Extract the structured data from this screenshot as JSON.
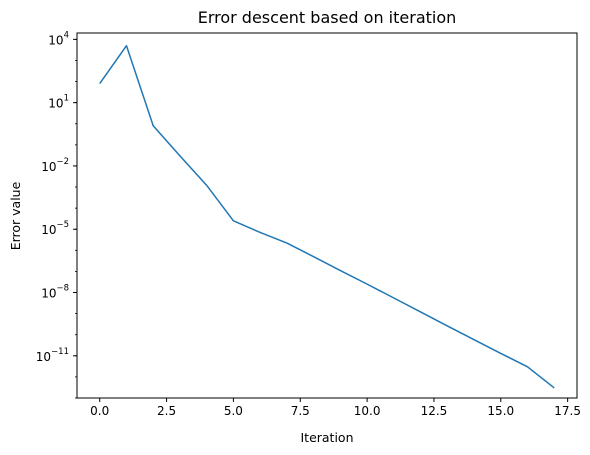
{
  "chart_data": {
    "type": "line",
    "title": "Error descent based on iteration",
    "xlabel": "Iteration",
    "ylabel": "Error value",
    "x_scale": "linear",
    "y_scale": "log",
    "xlim": [
      -0.85,
      17.85
    ],
    "ylim": [
      1e-13,
      20000.0
    ],
    "grid": false,
    "x_ticks": [
      {
        "value": 0.0,
        "label": "0.0"
      },
      {
        "value": 2.5,
        "label": "2.5"
      },
      {
        "value": 5.0,
        "label": "5.0"
      },
      {
        "value": 7.5,
        "label": "7.5"
      },
      {
        "value": 10.0,
        "label": "10.0"
      },
      {
        "value": 12.5,
        "label": "12.5"
      },
      {
        "value": 15.0,
        "label": "15.0"
      },
      {
        "value": 17.5,
        "label": "17.5"
      }
    ],
    "y_ticks": [
      {
        "value": 10000.0,
        "base": "10",
        "exp": "4"
      },
      {
        "value": 10.0,
        "base": "10",
        "exp": "1"
      },
      {
        "value": 0.01,
        "base": "10",
        "exp": "−2"
      },
      {
        "value": 1e-05,
        "base": "10",
        "exp": "−5"
      },
      {
        "value": 1e-08,
        "base": "10",
        "exp": "−8"
      },
      {
        "value": 1e-11,
        "base": "10",
        "exp": "−11"
      }
    ],
    "series": [
      {
        "color": "#1f77b4",
        "x": [
          0,
          1,
          2,
          3,
          4,
          5,
          6,
          7,
          8,
          9,
          10,
          11,
          12,
          13,
          14,
          15,
          16,
          17
        ],
        "y": [
          80,
          5000,
          0.8,
          0.03,
          0.0012,
          2.5e-05,
          7e-06,
          2.2e-06,
          5e-07,
          1.1e-07,
          2.5e-08,
          5.5e-09,
          1.2e-09,
          2.6e-10,
          5.8e-11,
          1.3e-11,
          3e-12,
          3e-13
        ]
      }
    ]
  }
}
